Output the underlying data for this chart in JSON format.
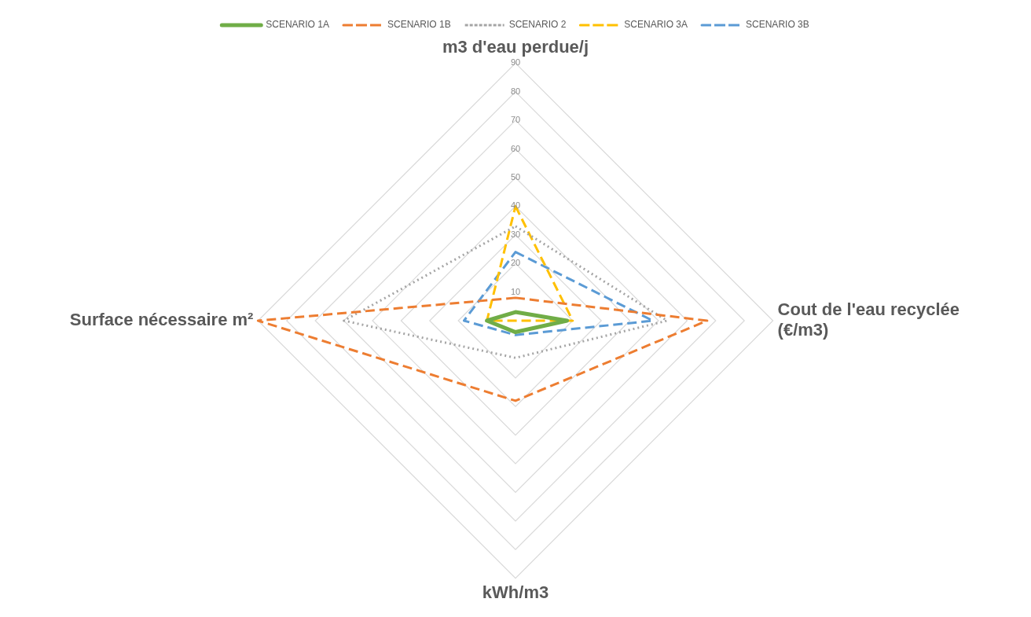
{
  "chart_data": {
    "type": "radar",
    "categories": [
      "m3 d'eau perdue/j",
      "Cout de l'eau recyclée\n(€/m3)",
      "kWh/m3",
      "Surface nécessaire m²"
    ],
    "ylim": [
      0,
      90
    ],
    "yticks": [
      10,
      20,
      30,
      40,
      50,
      60,
      70,
      80,
      90
    ],
    "grid": true,
    "legend": "top",
    "marker": "none",
    "series": [
      {
        "name": "SCENARIO 1A",
        "color": "#70ad47",
        "line_style": "solid",
        "values": [
          3,
          18,
          4,
          10
        ]
      },
      {
        "name": "SCENARIO 1B",
        "color": "#ed7d31",
        "line_style": "dashed",
        "values": [
          8,
          67,
          28,
          90
        ]
      },
      {
        "name": "SCENARIO 2",
        "color": "#a5a5a5",
        "line_style": "dotted",
        "values": [
          33,
          53,
          13,
          60
        ]
      },
      {
        "name": "SCENARIO 3A",
        "color": "#ffc000",
        "line_style": "dashed",
        "values": [
          40,
          20,
          0,
          10
        ]
      },
      {
        "name": "SCENARIO 3B",
        "color": "#5b9bd5",
        "line_style": "dashed",
        "values": [
          24,
          48,
          5,
          18
        ]
      }
    ]
  }
}
